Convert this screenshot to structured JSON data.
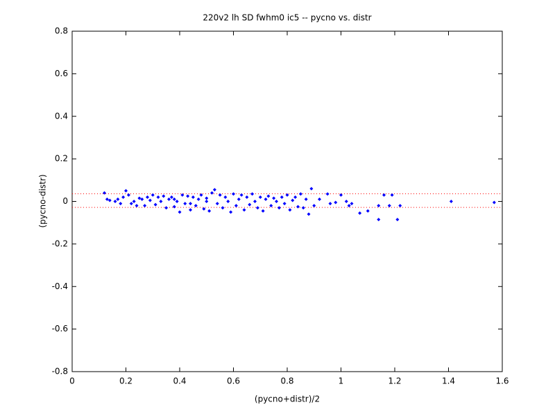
{
  "chart_data": {
    "type": "scatter",
    "title": "220v2 lh SD fwhm0 ic5 -- pycno vs. distr",
    "x_label": "(pycno+distr)/2",
    "y_label": "(pycno-distr)",
    "xlim": [
      0,
      1.6
    ],
    "ylim": [
      -0.8,
      0.8
    ],
    "xticks": [
      0,
      0.2,
      0.4,
      0.6,
      0.8,
      1,
      1.2,
      1.4,
      1.6
    ],
    "yticks": [
      -0.8,
      -0.6,
      -0.4,
      -0.2,
      0,
      0.2,
      0.4,
      0.6,
      0.8
    ],
    "color": "#0000ff",
    "reference_lines": {
      "color": "#ff0000",
      "values": [
        0.036,
        -0.028
      ]
    },
    "x": [
      0.12,
      0.13,
      0.14,
      0.16,
      0.17,
      0.18,
      0.19,
      0.2,
      0.21,
      0.22,
      0.23,
      0.24,
      0.25,
      0.26,
      0.27,
      0.28,
      0.29,
      0.3,
      0.31,
      0.32,
      0.33,
      0.34,
      0.35,
      0.36,
      0.37,
      0.38,
      0.39,
      0.4,
      0.41,
      0.42,
      0.43,
      0.44,
      0.45,
      0.46,
      0.47,
      0.48,
      0.49,
      0.5,
      0.51,
      0.52,
      0.53,
      0.54,
      0.55,
      0.56,
      0.57,
      0.58,
      0.59,
      0.6,
      0.61,
      0.62,
      0.63,
      0.64,
      0.65,
      0.66,
      0.67,
      0.68,
      0.69,
      0.7,
      0.71,
      0.72,
      0.73,
      0.74,
      0.75,
      0.76,
      0.77,
      0.78,
      0.79,
      0.8,
      0.81,
      0.82,
      0.83,
      0.84,
      0.85,
      0.86,
      0.87,
      0.88,
      0.89,
      0.9,
      0.92,
      0.95,
      0.96,
      0.98,
      1.0,
      1.02,
      1.03,
      1.04,
      1.07,
      1.1,
      1.14,
      1.14,
      1.16,
      1.18,
      1.19,
      1.21,
      1.22,
      1.41,
      1.57,
      0.38,
      0.44,
      0.5
    ],
    "values": [
      0.04,
      0.01,
      0.005,
      0.0,
      0.01,
      -0.01,
      0.02,
      0.05,
      0.03,
      -0.01,
      0.0,
      -0.02,
      0.015,
      0.01,
      -0.02,
      0.02,
      0.005,
      0.03,
      -0.015,
      0.02,
      0.0,
      0.025,
      -0.03,
      0.01,
      0.02,
      -0.025,
      0.0,
      -0.05,
      0.03,
      -0.01,
      0.025,
      -0.04,
      0.02,
      -0.02,
      0.01,
      0.03,
      -0.035,
      0.015,
      -0.045,
      0.04,
      0.055,
      -0.01,
      0.03,
      -0.03,
      0.02,
      0.0,
      -0.05,
      0.035,
      -0.02,
      0.01,
      0.03,
      -0.04,
      0.02,
      -0.015,
      0.035,
      0.0,
      -0.03,
      0.02,
      -0.045,
      0.01,
      0.025,
      -0.02,
      0.015,
      0.0,
      -0.03,
      0.02,
      -0.01,
      0.03,
      -0.04,
      0.005,
      0.02,
      -0.025,
      0.035,
      -0.03,
      0.01,
      -0.06,
      0.06,
      -0.02,
      0.01,
      0.035,
      -0.01,
      -0.005,
      0.03,
      0.0,
      -0.02,
      -0.01,
      -0.055,
      -0.045,
      -0.02,
      -0.085,
      0.03,
      -0.02,
      0.03,
      -0.085,
      -0.02,
      0.0,
      -0.005,
      0.01,
      -0.01,
      0.0
    ]
  }
}
